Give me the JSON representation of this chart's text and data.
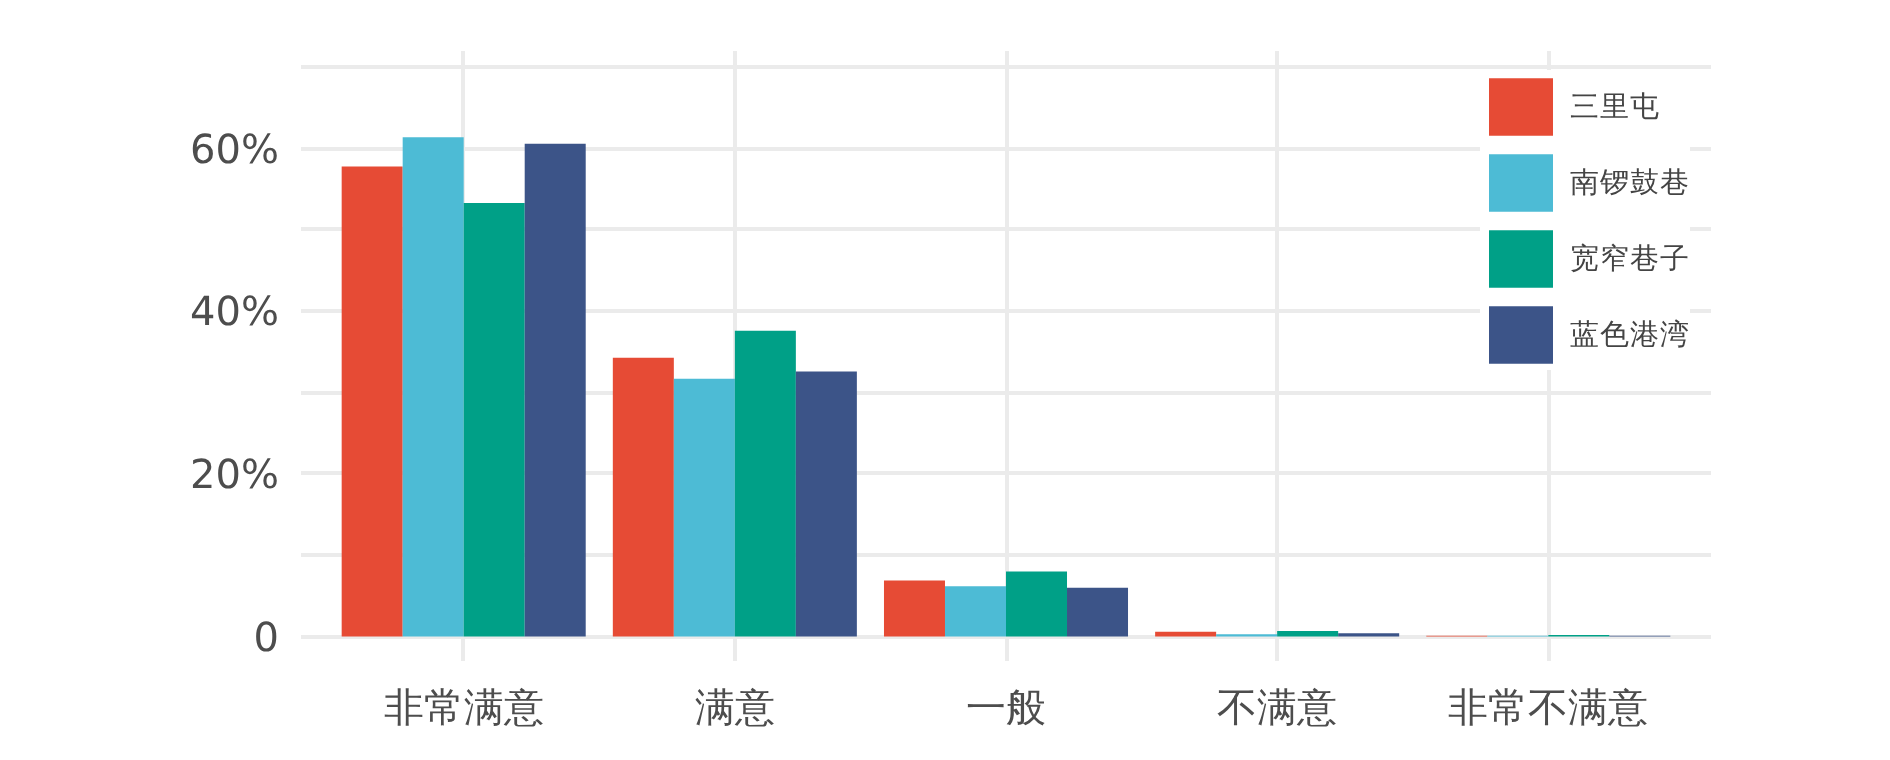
{
  "chart_data": {
    "type": "bar",
    "categories": [
      "非常满意",
      "满意",
      "一般",
      "不满意",
      "非常不满意"
    ],
    "series": [
      {
        "name": "三里屯",
        "color": "#e64b35",
        "values": [
          57.8,
          34.3,
          6.9,
          0.6,
          0.1
        ]
      },
      {
        "name": "南锣鼓巷",
        "color": "#4dbbd5",
        "values": [
          61.4,
          31.7,
          6.2,
          0.3,
          0.1
        ]
      },
      {
        "name": "宽窄巷子",
        "color": "#00a087",
        "values": [
          53.3,
          37.6,
          8.0,
          0.7,
          0.2
        ]
      },
      {
        "name": "蓝色港湾",
        "color": "#3c5488",
        "values": [
          60.6,
          32.6,
          6.0,
          0.4,
          0.1
        ]
      }
    ],
    "ylim": [
      -3,
      72
    ],
    "yticks": [
      0,
      {
        "value": 10,
        "label": null
      },
      {
        "value": 20,
        "label": "20%"
      },
      {
        "value": 30,
        "label": null
      },
      {
        "value": 40,
        "label": "40%"
      },
      {
        "value": 50,
        "label": null
      },
      {
        "value": 60,
        "label": "60%"
      },
      {
        "value": 70,
        "label": null
      }
    ],
    "grid": true,
    "legend": "top right"
  }
}
